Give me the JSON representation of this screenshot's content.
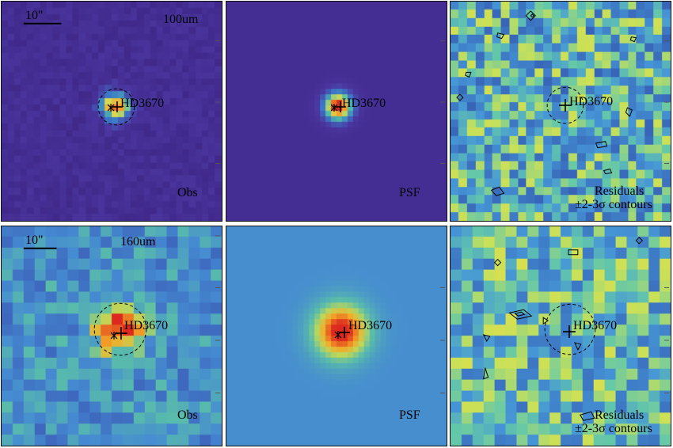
{
  "figure": {
    "source_name": "HD3670",
    "scale_bar_label": "10\"",
    "rows": [
      {
        "band": "100um",
        "panels": [
          {
            "label": "Obs",
            "kind": "observed",
            "colormap": "purple-yellow"
          },
          {
            "label": "PSF",
            "kind": "psf",
            "colormap": "purple-yellow"
          },
          {
            "label_line1": "Residuals",
            "label_line2": "±2-3σ contours",
            "kind": "residual",
            "colormap": "blue-yellow"
          }
        ]
      },
      {
        "band": "160um",
        "panels": [
          {
            "label": "Obs",
            "kind": "observed",
            "colormap": "blue-red"
          },
          {
            "label": "PSF",
            "kind": "psf",
            "colormap": "blue-red"
          },
          {
            "label_line1": "Residuals",
            "label_line2": "±2-3σ contours",
            "kind": "residual",
            "colormap": "blue-yellow"
          }
        ]
      }
    ],
    "axis_ticks": [
      "20",
      "10",
      "30"
    ],
    "colors": {
      "background_dark": "#3b2a8a",
      "psf_background": "#3d2d8f",
      "peak": "#d7301f",
      "contour": "#000000",
      "frame": "#111111"
    }
  }
}
